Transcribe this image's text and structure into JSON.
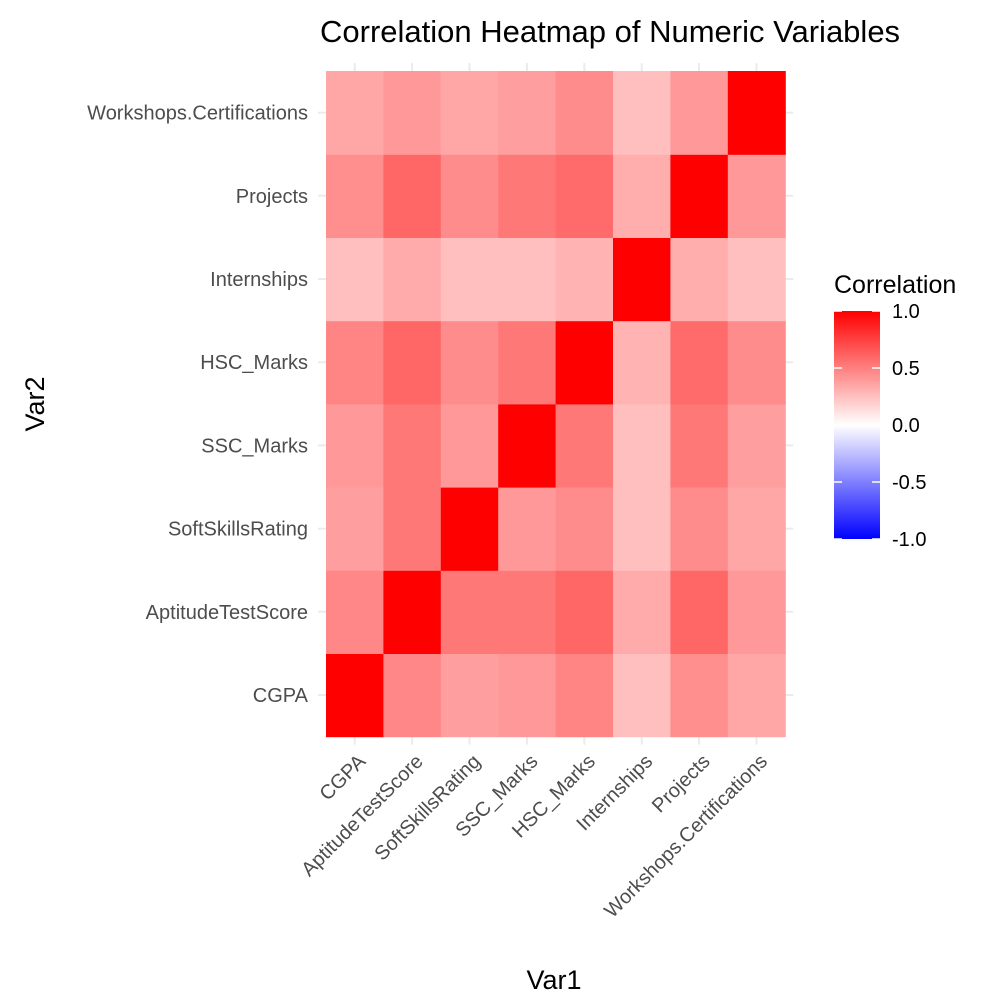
{
  "chart_data": {
    "type": "heatmap",
    "title": "Correlation Heatmap of Numeric Variables",
    "xlabel": "Var1",
    "ylabel": "Var2",
    "x_categories": [
      "CGPA",
      "AptitudeTestScore",
      "SoftSkillsRating",
      "SSC_Marks",
      "HSC_Marks",
      "Internships",
      "Projects",
      "Workshops.Certifications"
    ],
    "y_categories": [
      "CGPA",
      "AptitudeTestScore",
      "SoftSkillsRating",
      "SSC_Marks",
      "HSC_Marks",
      "Internships",
      "Projects",
      "Workshops.Certifications"
    ],
    "values": [
      [
        1.0,
        0.47,
        0.38,
        0.4,
        0.48,
        0.25,
        0.44,
        0.35
      ],
      [
        0.47,
        1.0,
        0.53,
        0.53,
        0.6,
        0.33,
        0.6,
        0.4
      ],
      [
        0.38,
        0.53,
        1.0,
        0.4,
        0.45,
        0.25,
        0.45,
        0.35
      ],
      [
        0.4,
        0.53,
        0.4,
        1.0,
        0.53,
        0.25,
        0.53,
        0.38
      ],
      [
        0.48,
        0.6,
        0.45,
        0.53,
        1.0,
        0.3,
        0.58,
        0.45
      ],
      [
        0.25,
        0.33,
        0.25,
        0.25,
        0.3,
        1.0,
        0.32,
        0.25
      ],
      [
        0.44,
        0.6,
        0.45,
        0.53,
        0.58,
        0.32,
        1.0,
        0.4
      ],
      [
        0.35,
        0.4,
        0.35,
        0.38,
        0.45,
        0.25,
        0.4,
        1.0
      ]
    ],
    "color_scale": {
      "low": "#0000ff",
      "mid": "#ffffff",
      "high": "#ff0000",
      "limits": [
        -1,
        1
      ]
    },
    "legend": {
      "title": "Correlation",
      "breaks": [
        "1.0",
        "0.5",
        "0.0",
        "-0.5",
        "-1.0"
      ],
      "break_values": [
        1.0,
        0.5,
        0.0,
        -0.5,
        -1.0
      ],
      "position": "right"
    },
    "grid": true
  }
}
